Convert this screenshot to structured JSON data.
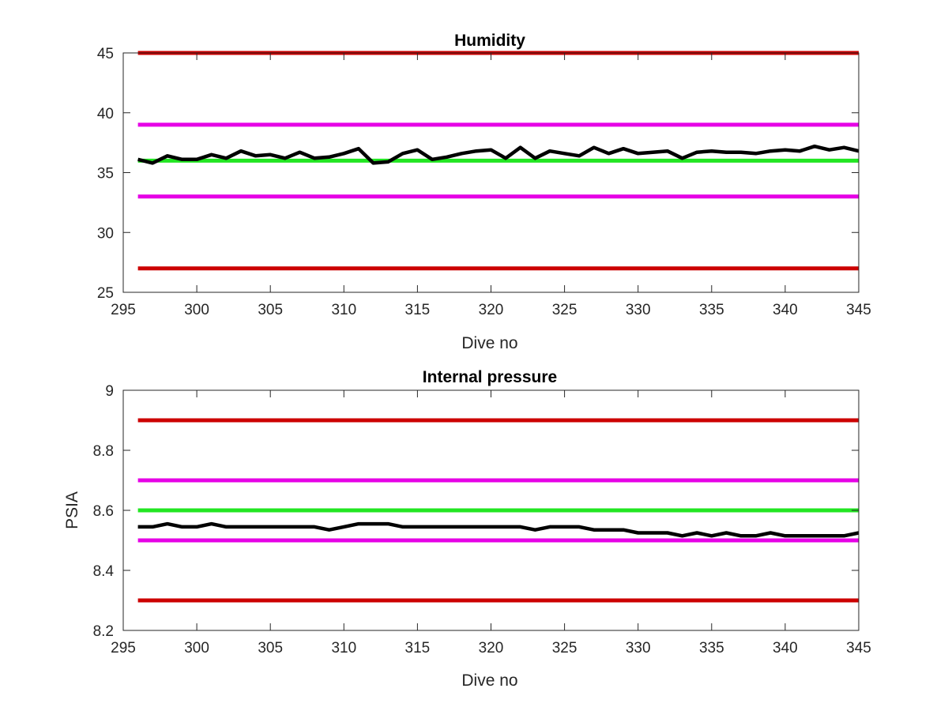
{
  "chart_data": [
    {
      "type": "line",
      "title": "Humidity",
      "xlabel": "Dive no",
      "ylabel": "",
      "xlim": [
        295,
        345
      ],
      "ylim": [
        25,
        45
      ],
      "xticks": [
        295,
        300,
        305,
        310,
        315,
        320,
        325,
        330,
        335,
        340,
        345
      ],
      "yticks": [
        25,
        30,
        35,
        40,
        45
      ],
      "grid": false,
      "reference_lines": [
        {
          "y": 45,
          "color": "#cc0000"
        },
        {
          "y": 39,
          "color": "#e600e6"
        },
        {
          "y": 36,
          "color": "#22e622"
        },
        {
          "y": 33,
          "color": "#e600e6"
        },
        {
          "y": 27,
          "color": "#cc0000"
        }
      ],
      "series": [
        {
          "color": "#000000",
          "x": [
            296,
            297,
            298,
            299,
            300,
            301,
            302,
            303,
            304,
            305,
            306,
            307,
            308,
            309,
            310,
            311,
            312,
            313,
            314,
            315,
            316,
            317,
            318,
            319,
            320,
            321,
            322,
            323,
            324,
            325,
            326,
            327,
            328,
            329,
            330,
            331,
            332,
            333,
            334,
            335,
            336,
            337,
            338,
            339,
            340,
            341,
            342,
            343,
            344,
            345
          ],
          "values": [
            36.1,
            35.8,
            36.4,
            36.1,
            36.1,
            36.5,
            36.2,
            36.8,
            36.4,
            36.5,
            36.2,
            36.7,
            36.2,
            36.3,
            36.6,
            37.0,
            35.8,
            35.9,
            36.6,
            36.9,
            36.1,
            36.3,
            36.6,
            36.8,
            36.9,
            36.2,
            37.1,
            36.2,
            36.8,
            36.6,
            36.4,
            37.1,
            36.6,
            37.0,
            36.6,
            36.7,
            36.8,
            36.2,
            36.7,
            36.8,
            36.7,
            36.7,
            36.6,
            36.8,
            36.9,
            36.8,
            37.2,
            36.9,
            37.1,
            36.8
          ]
        }
      ]
    },
    {
      "type": "line",
      "title": "Internal pressure",
      "xlabel": "Dive no",
      "ylabel": "PSIA",
      "xlim": [
        295,
        345
      ],
      "ylim": [
        8.2,
        9
      ],
      "xticks": [
        295,
        300,
        305,
        310,
        315,
        320,
        325,
        330,
        335,
        340,
        345
      ],
      "yticks": [
        8.2,
        8.4,
        8.6,
        8.8,
        9
      ],
      "ytick_labels": [
        "8.2",
        "8.4",
        "8.6",
        "8.8",
        "9"
      ],
      "grid": false,
      "reference_lines": [
        {
          "y": 8.9,
          "color": "#cc0000"
        },
        {
          "y": 8.7,
          "color": "#e600e6"
        },
        {
          "y": 8.6,
          "color": "#22e622"
        },
        {
          "y": 8.5,
          "color": "#e600e6"
        },
        {
          "y": 8.3,
          "color": "#cc0000"
        }
      ],
      "series": [
        {
          "color": "#000000",
          "x": [
            296,
            297,
            298,
            299,
            300,
            301,
            302,
            303,
            304,
            305,
            306,
            307,
            308,
            309,
            310,
            311,
            312,
            313,
            314,
            315,
            316,
            317,
            318,
            319,
            320,
            321,
            322,
            323,
            324,
            325,
            326,
            327,
            328,
            329,
            330,
            331,
            332,
            333,
            334,
            335,
            336,
            337,
            338,
            339,
            340,
            341,
            342,
            343,
            344,
            345
          ],
          "values": [
            8.545,
            8.545,
            8.555,
            8.545,
            8.545,
            8.555,
            8.545,
            8.545,
            8.545,
            8.545,
            8.545,
            8.545,
            8.545,
            8.535,
            8.545,
            8.555,
            8.555,
            8.555,
            8.545,
            8.545,
            8.545,
            8.545,
            8.545,
            8.545,
            8.545,
            8.545,
            8.545,
            8.535,
            8.545,
            8.545,
            8.545,
            8.535,
            8.535,
            8.535,
            8.525,
            8.525,
            8.525,
            8.515,
            8.525,
            8.515,
            8.525,
            8.515,
            8.515,
            8.525,
            8.515,
            8.515,
            8.515,
            8.515,
            8.515,
            8.525
          ]
        }
      ]
    }
  ]
}
